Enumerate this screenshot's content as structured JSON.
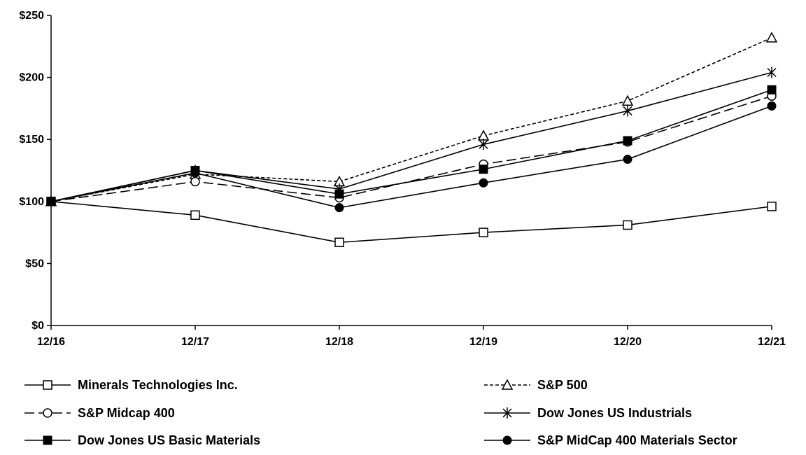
{
  "chart_data": {
    "type": "line",
    "categories": [
      "12/16",
      "12/17",
      "12/18",
      "12/19",
      "12/20",
      "12/21"
    ],
    "y_ticks": [
      "$0",
      "$50",
      "$100",
      "$150",
      "$200",
      "$250"
    ],
    "ylim": [
      0,
      250
    ],
    "grid": false,
    "legend_position": "bottom",
    "series": [
      {
        "name": "Minerals Technologies Inc.",
        "values": [
          100,
          89,
          67,
          75,
          81,
          96
        ],
        "marker": "open-square",
        "dash": "solid"
      },
      {
        "name": "S&P 500",
        "values": [
          100,
          122,
          116,
          153,
          181,
          232
        ],
        "marker": "open-triangle",
        "dash": "short-dash"
      },
      {
        "name": "S&P Midcap 400",
        "values": [
          100,
          116,
          103,
          130,
          148,
          185
        ],
        "marker": "open-circle",
        "dash": "long-dash"
      },
      {
        "name": "Dow Jones US Industrials",
        "values": [
          100,
          125,
          110,
          146,
          173,
          204
        ],
        "marker": "asterisk",
        "dash": "solid"
      },
      {
        "name": "Dow Jones US Basic Materials",
        "values": [
          100,
          125,
          106,
          126,
          149,
          190
        ],
        "marker": "filled-square",
        "dash": "solid"
      },
      {
        "name": "S&P MidCap 400 Materials Sector",
        "values": [
          100,
          123,
          95,
          115,
          134,
          177
        ],
        "marker": "filled-circle",
        "dash": "solid"
      }
    ]
  }
}
